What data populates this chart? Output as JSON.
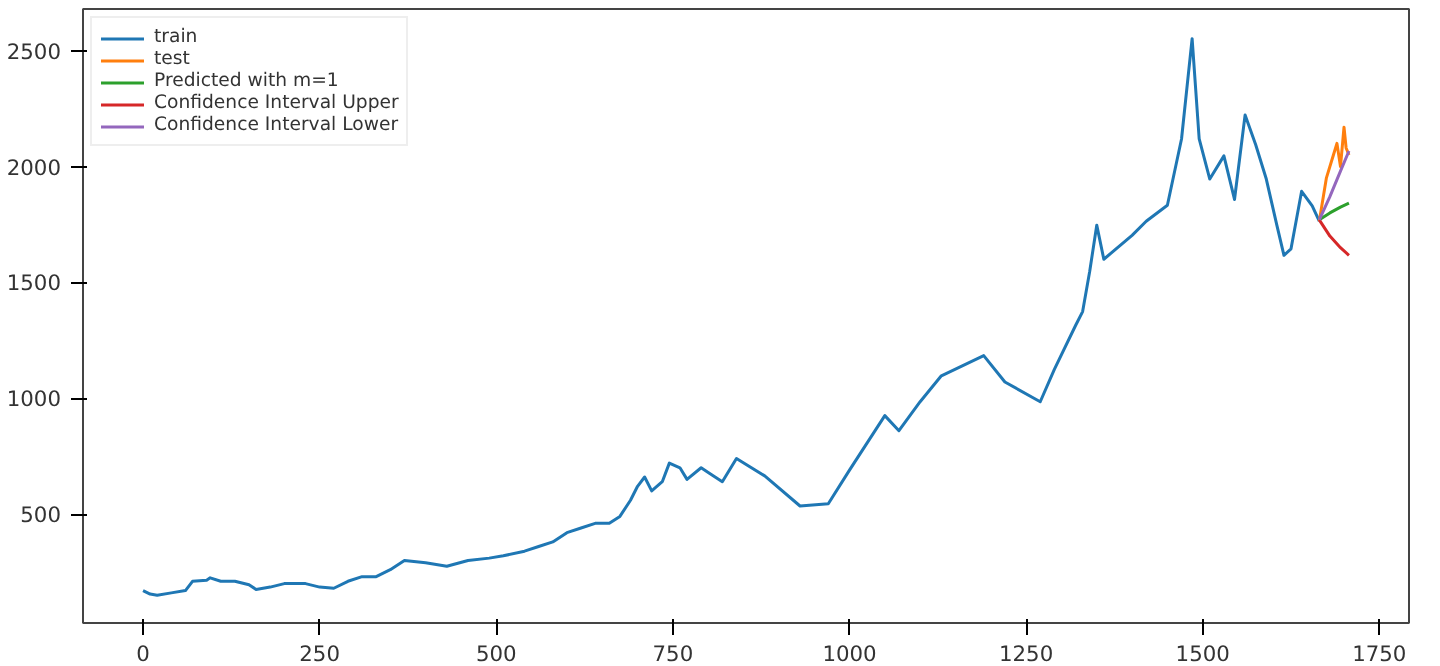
{
  "chart_data": {
    "type": "line",
    "xlim": [
      -85,
      1792
    ],
    "ylim": [
      30,
      2680
    ],
    "xticks": [
      0,
      250,
      500,
      750,
      1000,
      1250,
      1500,
      1750
    ],
    "yticks": [
      500,
      1000,
      1500,
      2000,
      2500
    ],
    "grid": false,
    "legend": "top left",
    "marker": "none",
    "line_style": "solid",
    "series": [
      {
        "name": "train",
        "color": "#1f77b4",
        "x": [
          0,
          10,
          20,
          40,
          60,
          70,
          90,
          95,
          110,
          130,
          150,
          160,
          180,
          200,
          230,
          250,
          270,
          290,
          310,
          330,
          350,
          370,
          400,
          430,
          460,
          490,
          510,
          540,
          560,
          580,
          600,
          620,
          640,
          660,
          675,
          690,
          700,
          710,
          720,
          735,
          745,
          760,
          770,
          790,
          800,
          820,
          840,
          880,
          930,
          970,
          1000,
          1050,
          1070,
          1100,
          1130,
          1190,
          1220,
          1270,
          1290,
          1320,
          1330,
          1340,
          1350,
          1360,
          1400,
          1420,
          1450,
          1470,
          1485,
          1495,
          1510,
          1530,
          1545,
          1560,
          1575,
          1590,
          1605,
          1615,
          1625,
          1640,
          1655,
          1665
        ],
        "values": [
          170,
          155,
          150,
          160,
          170,
          210,
          215,
          225,
          210,
          210,
          195,
          175,
          185,
          200,
          200,
          185,
          180,
          210,
          230,
          230,
          260,
          300,
          290,
          275,
          300,
          310,
          320,
          340,
          360,
          380,
          420,
          440,
          460,
          460,
          490,
          560,
          620,
          660,
          600,
          640,
          720,
          700,
          650,
          700,
          680,
          640,
          740,
          665,
          535,
          545,
          690,
          925,
          860,
          985,
          1097,
          1184,
          1070,
          985,
          1125,
          1314,
          1374,
          1547,
          1747,
          1600,
          1703,
          1764,
          1833,
          2119,
          2552,
          2119,
          1946,
          2046,
          1858,
          2223,
          2094,
          1946,
          1746,
          1617,
          1645,
          1893,
          1830,
          1764
        ]
      },
      {
        "name": "test",
        "color": "#ff7f0e",
        "x": [
          1665,
          1675,
          1685,
          1690,
          1695,
          1700,
          1703,
          1707
        ],
        "values": [
          1764,
          1950,
          2050,
          2100,
          2000,
          2170,
          2080,
          2050
        ]
      },
      {
        "name": "Predicted with m=1",
        "color": "#2ca02c",
        "x": [
          1665,
          1680,
          1695,
          1707
        ],
        "values": [
          1770,
          1800,
          1825,
          1842
        ]
      },
      {
        "name": "Confidence Interval Upper",
        "color": "#d62728",
        "x": [
          1665,
          1680,
          1695,
          1707
        ],
        "values": [
          1770,
          1700,
          1650,
          1617
        ]
      },
      {
        "name": "Confidence Interval Lower",
        "color": "#9467bd",
        "x": [
          1665,
          1680,
          1695,
          1707
        ],
        "values": [
          1770,
          1870,
          1980,
          2067
        ]
      }
    ]
  }
}
